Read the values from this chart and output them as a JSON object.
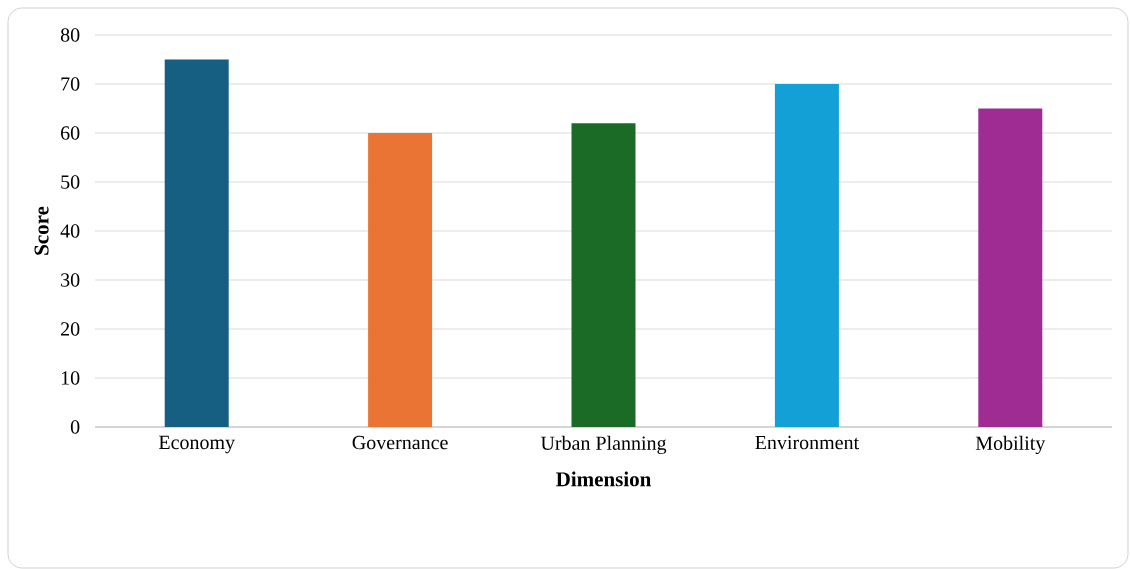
{
  "chart_data": {
    "type": "bar",
    "xlabel": "Dimension",
    "ylabel": "Score",
    "categories": [
      "Economy",
      "Governance",
      "Urban Planning",
      "Environment",
      "Mobility"
    ],
    "values": [
      75,
      60,
      62,
      70,
      65
    ],
    "colors": [
      "#175f82",
      "#e97434",
      "#1b6b27",
      "#12a0d7",
      "#9e2c93"
    ],
    "ylim": [
      0,
      80
    ],
    "yticks": [
      0,
      10,
      20,
      30,
      40,
      50,
      60,
      70,
      80
    ],
    "grid": "y"
  }
}
